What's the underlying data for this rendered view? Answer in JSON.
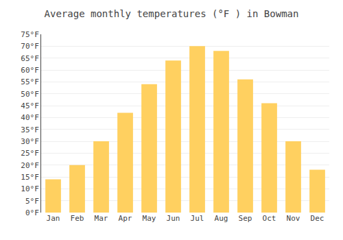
{
  "chart_data": {
    "type": "bar",
    "title": "Average monthly temperatures (°F ) in Bowman",
    "categories": [
      "Jan",
      "Feb",
      "Mar",
      "Apr",
      "May",
      "Jun",
      "Jul",
      "Aug",
      "Sep",
      "Oct",
      "Nov",
      "Dec"
    ],
    "values": [
      14,
      20,
      30,
      42,
      54,
      64,
      70,
      68,
      56,
      46,
      30,
      18
    ],
    "color": "#FFD060",
    "ylim": [
      0,
      75
    ],
    "yticks": [
      {
        "value": 0,
        "label": "0°F"
      },
      {
        "value": 5,
        "label": "5°F"
      },
      {
        "value": 10,
        "label": "10°F"
      },
      {
        "value": 15,
        "label": "15°F"
      },
      {
        "value": 20,
        "label": "20°F"
      },
      {
        "value": 25,
        "label": "25°F"
      },
      {
        "value": 30,
        "label": "30°F"
      },
      {
        "value": 35,
        "label": "35°F"
      },
      {
        "value": 40,
        "label": "40°F"
      },
      {
        "value": 45,
        "label": "45°F"
      },
      {
        "value": 50,
        "label": "50°F"
      },
      {
        "value": 55,
        "label": "55°F"
      },
      {
        "value": 60,
        "label": "60°F"
      },
      {
        "value": 65,
        "label": "65°F"
      },
      {
        "value": 70,
        "label": "70°F"
      },
      {
        "value": 75,
        "label": "75°F"
      }
    ],
    "grid": true
  }
}
